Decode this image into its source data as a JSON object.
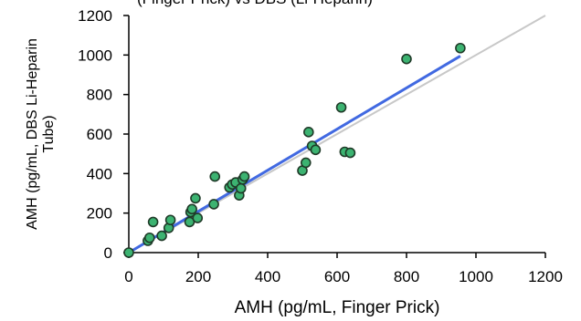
{
  "partial_title": "(Finger Prick) vs DBS (Li-Heparin)",
  "chart_data": {
    "type": "scatter",
    "title": "",
    "xlabel": "AMH (pg/mL, Finger Prick)",
    "ylabel_lines": [
      "AMH (pg/mL, DBS Li-Heparin",
      "Tube)"
    ],
    "xlim": [
      0,
      1200
    ],
    "ylim": [
      0,
      1200
    ],
    "x_ticks": [
      0,
      200,
      400,
      600,
      800,
      1000,
      1200
    ],
    "y_ticks": [
      0,
      200,
      400,
      600,
      800,
      1000,
      1200
    ],
    "x_tick_labels": [
      "0",
      "200",
      "400",
      "600",
      "800",
      "1000",
      "1200"
    ],
    "y_tick_labels": [
      "0",
      "200",
      "400",
      "600",
      "800",
      "1000",
      "1200"
    ],
    "grid": false,
    "legend": "none",
    "point_color": "#3cb371",
    "point_edge_color": "#1f3a28",
    "regression_color": "#4169e1",
    "identity_color": "#c8c8c8",
    "points": [
      {
        "x": 0,
        "y": 0
      },
      {
        "x": 55,
        "y": 60
      },
      {
        "x": 60,
        "y": 75
      },
      {
        "x": 70,
        "y": 155
      },
      {
        "x": 95,
        "y": 85
      },
      {
        "x": 115,
        "y": 125
      },
      {
        "x": 120,
        "y": 165
      },
      {
        "x": 175,
        "y": 155
      },
      {
        "x": 178,
        "y": 205
      },
      {
        "x": 182,
        "y": 220
      },
      {
        "x": 192,
        "y": 275
      },
      {
        "x": 198,
        "y": 175
      },
      {
        "x": 245,
        "y": 245
      },
      {
        "x": 248,
        "y": 385
      },
      {
        "x": 290,
        "y": 330
      },
      {
        "x": 298,
        "y": 345
      },
      {
        "x": 308,
        "y": 355
      },
      {
        "x": 318,
        "y": 290
      },
      {
        "x": 323,
        "y": 325
      },
      {
        "x": 328,
        "y": 370
      },
      {
        "x": 333,
        "y": 385
      },
      {
        "x": 500,
        "y": 415
      },
      {
        "x": 510,
        "y": 455
      },
      {
        "x": 518,
        "y": 610
      },
      {
        "x": 528,
        "y": 540
      },
      {
        "x": 538,
        "y": 520
      },
      {
        "x": 612,
        "y": 735
      },
      {
        "x": 622,
        "y": 510
      },
      {
        "x": 638,
        "y": 505
      },
      {
        "x": 800,
        "y": 980
      },
      {
        "x": 955,
        "y": 1035
      }
    ],
    "regression_line": {
      "x": [
        0,
        955
      ],
      "y": [
        0,
        995
      ]
    },
    "identity_line": {
      "x": [
        0,
        1200
      ],
      "y": [
        0,
        1200
      ]
    }
  }
}
